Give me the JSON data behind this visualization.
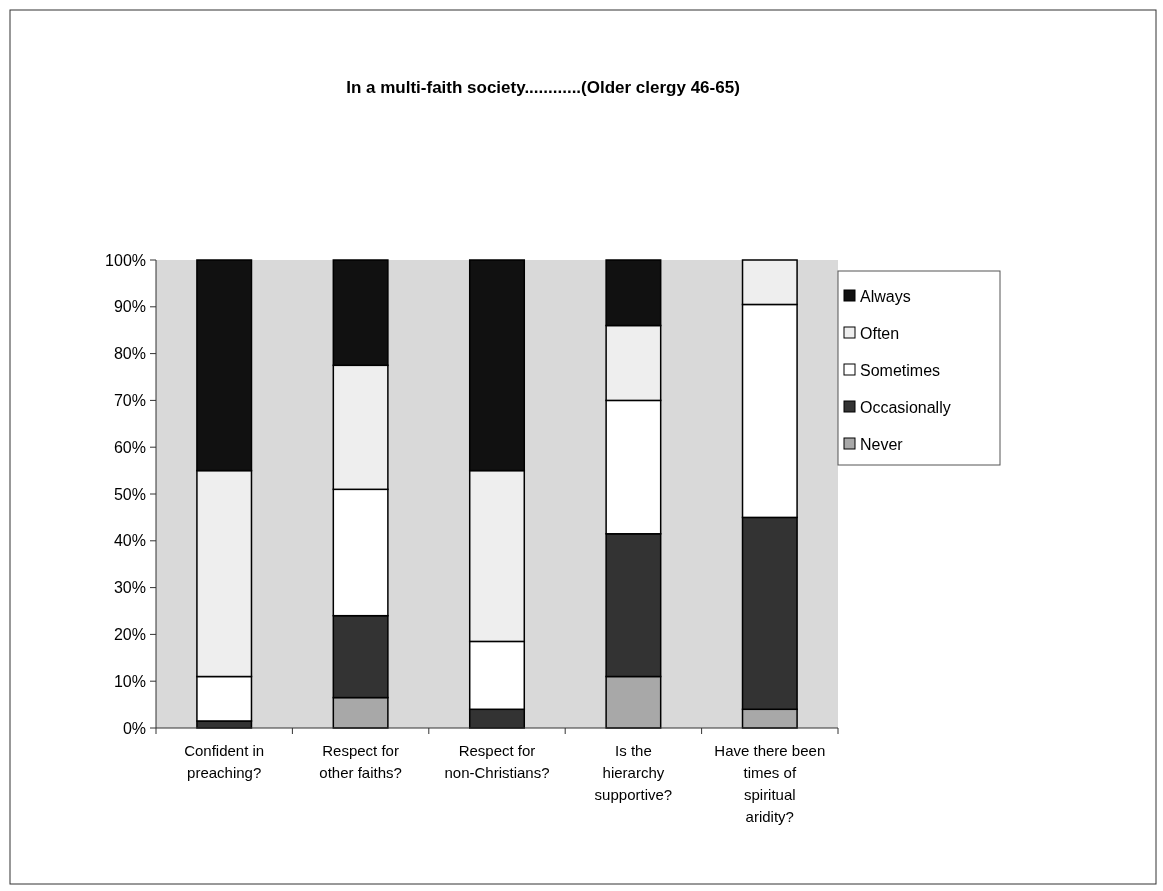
{
  "chart_data": {
    "type": "bar",
    "stacked": true,
    "title": "In a multi-faith society............(Older clergy 46-65)",
    "categories": [
      "Confident in preaching?",
      "Respect for other faiths?",
      "Respect for non-Christians?",
      "Is the hierarchy supportive?",
      "Have there been times of spiritual aridity?"
    ],
    "series": [
      {
        "name": "Never",
        "color": "#a8a8a8",
        "values": [
          0,
          6.5,
          0,
          11,
          4
        ]
      },
      {
        "name": "Occasionally",
        "color": "#333333",
        "values": [
          1.5,
          17.5,
          4,
          30.5,
          41
        ]
      },
      {
        "name": "Sometimes",
        "color": "#ffffff",
        "values": [
          9.5,
          27,
          14.5,
          28.5,
          45.5
        ]
      },
      {
        "name": "Often",
        "color": "#eeeeee",
        "values": [
          44,
          26.5,
          36.5,
          16,
          9.5
        ]
      },
      {
        "name": "Always",
        "color": "#111111",
        "values": [
          45,
          22.5,
          45,
          14,
          0
        ]
      }
    ],
    "ylim": [
      0,
      100
    ],
    "yticks": [
      {
        "value": 0,
        "label": "0%"
      },
      {
        "value": 10,
        "label": "10%"
      },
      {
        "value": 20,
        "label": "20%"
      },
      {
        "value": 30,
        "label": "30%"
      },
      {
        "value": 40,
        "label": "40%"
      },
      {
        "value": 50,
        "label": "50%"
      },
      {
        "value": 60,
        "label": "60%"
      },
      {
        "value": 70,
        "label": "70%"
      },
      {
        "value": 80,
        "label": "80%"
      },
      {
        "value": 90,
        "label": "90%"
      },
      {
        "value": 100,
        "label": "100%"
      }
    ],
    "legend": "right",
    "grid": false
  }
}
